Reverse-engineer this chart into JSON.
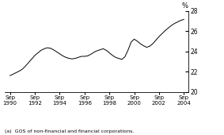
{
  "title": "",
  "ylabel": "%",
  "ylim": [
    20,
    28
  ],
  "yticks": [
    20,
    22,
    24,
    26,
    28
  ],
  "xlabel": "",
  "background_color": "#ffffff",
  "line_color": "#000000",
  "footnote": "(a)  GOS of non-financial and financial corporations.",
  "xtick_labels": [
    "Sep\n1990",
    "Sep\n1992",
    "Sep\n1994",
    "Sep\n1996",
    "Sep\n1998",
    "Sep\n2000",
    "Sep\n2002",
    "Sep\n2004"
  ],
  "xtick_positions": [
    1990.75,
    1992.75,
    1994.75,
    1996.75,
    1998.75,
    2000.75,
    2002.75,
    2004.75
  ],
  "xlim": [
    1990.3,
    2005.1
  ],
  "x_values": [
    1990.75,
    1991.0,
    1991.25,
    1991.5,
    1991.75,
    1992.0,
    1992.25,
    1992.5,
    1992.75,
    1993.0,
    1993.25,
    1993.5,
    1993.75,
    1994.0,
    1994.25,
    1994.5,
    1994.75,
    1995.0,
    1995.25,
    1995.5,
    1995.75,
    1996.0,
    1996.25,
    1996.5,
    1996.75,
    1997.0,
    1997.25,
    1997.5,
    1997.75,
    1998.0,
    1998.25,
    1998.5,
    1998.75,
    1999.0,
    1999.25,
    1999.5,
    1999.75,
    2000.0,
    2000.25,
    2000.5,
    2000.75,
    2001.0,
    2001.25,
    2001.5,
    2001.75,
    2002.0,
    2002.25,
    2002.5,
    2002.75,
    2003.0,
    2003.25,
    2003.5,
    2003.75,
    2004.0,
    2004.25,
    2004.5,
    2004.75
  ],
  "y_values": [
    21.6,
    21.75,
    21.9,
    22.05,
    22.25,
    22.55,
    22.9,
    23.25,
    23.6,
    23.85,
    24.1,
    24.25,
    24.35,
    24.3,
    24.15,
    23.95,
    23.75,
    23.55,
    23.4,
    23.3,
    23.25,
    23.3,
    23.4,
    23.5,
    23.5,
    23.55,
    23.7,
    23.9,
    24.05,
    24.15,
    24.25,
    24.1,
    23.85,
    23.6,
    23.4,
    23.3,
    23.2,
    23.45,
    24.1,
    24.9,
    25.2,
    25.0,
    24.75,
    24.55,
    24.4,
    24.5,
    24.75,
    25.1,
    25.45,
    25.75,
    26.05,
    26.3,
    26.55,
    26.75,
    26.9,
    27.05,
    27.15
  ]
}
